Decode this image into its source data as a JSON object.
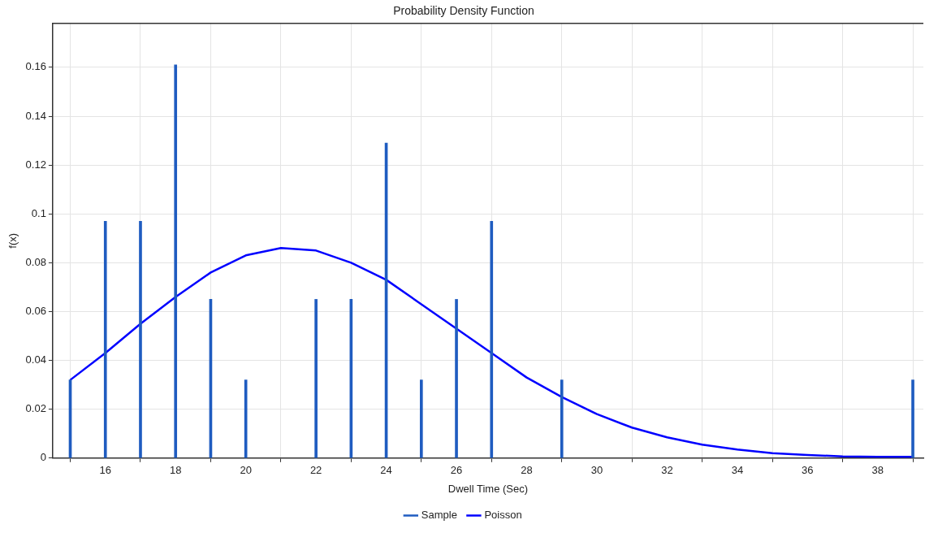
{
  "chart_data": {
    "type": "line",
    "title": "Probability Density Function",
    "xlabel": "Dwell Time (Sec)",
    "ylabel": "f(x)",
    "xlim": [
      14.5,
      39.3
    ],
    "xticks": [
      16,
      18,
      20,
      22,
      24,
      26,
      28,
      30,
      32,
      34,
      36,
      38
    ],
    "ylim": [
      0,
      0.178
    ],
    "yticks": [
      0,
      0.02,
      0.04,
      0.06,
      0.08,
      0.1,
      0.12,
      0.14,
      0.16
    ],
    "grid": true,
    "legend": "bottom",
    "marker": "none",
    "line_style": "solid",
    "series": [
      {
        "name": "Sample",
        "type": "bar",
        "color": "#1f5cc0",
        "x": [
          15,
          16,
          17,
          18,
          19,
          20,
          22,
          23,
          24,
          25,
          26,
          27,
          29,
          39
        ],
        "values": [
          0.032,
          0.097,
          0.097,
          0.161,
          0.065,
          0.032,
          0.065,
          0.065,
          0.129,
          0.032,
          0.065,
          0.097,
          0.032,
          0.032
        ]
      },
      {
        "name": "Poisson",
        "type": "line",
        "color": "#0000ff",
        "x": [
          15,
          16,
          17,
          18,
          19,
          20,
          21,
          22,
          23,
          24,
          25,
          26,
          27,
          28,
          29,
          30,
          31,
          32,
          33,
          34,
          35,
          36,
          37,
          38,
          39
        ],
        "values": [
          0.032,
          0.043,
          0.055,
          0.066,
          0.076,
          0.083,
          0.086,
          0.085,
          0.08,
          0.073,
          0.063,
          0.053,
          0.043,
          0.033,
          0.025,
          0.018,
          0.0125,
          0.0085,
          0.0055,
          0.0035,
          0.002,
          0.0013,
          0.0007,
          0.0005,
          0.0005
        ]
      }
    ]
  }
}
